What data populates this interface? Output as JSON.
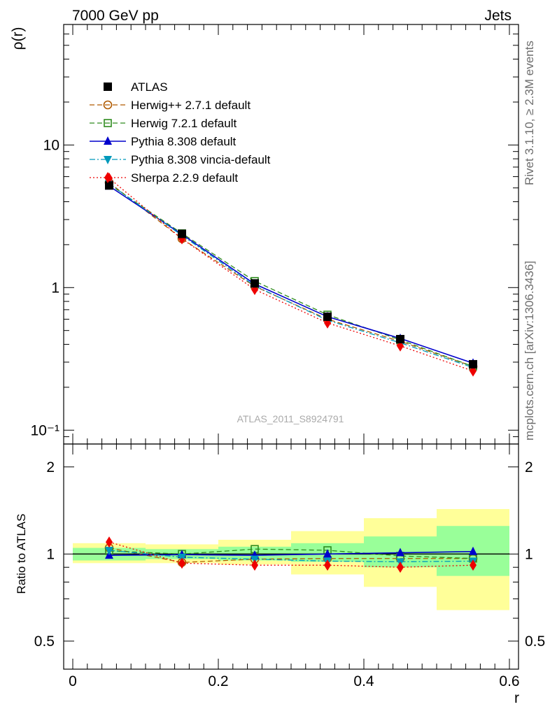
{
  "header": {
    "left": "7000 GeV pp",
    "right": "Jets"
  },
  "side_labels": {
    "rivet": "Rivet 3.1.10, ≥ 2.3M events",
    "mcplots": "mcplots.cern.ch [arXiv:1306.3436]"
  },
  "watermark": "ATLAS_2011_S8924791",
  "chart_data": [
    {
      "panel": "main",
      "type": "line",
      "ylabel": "ρ(r)",
      "yscale": "log",
      "ylim": [
        0.08,
        70
      ],
      "xlim": [
        -0.0125,
        0.6125
      ],
      "yticks": [
        {
          "v": 10,
          "label": "10"
        },
        {
          "v": 1,
          "label": "1"
        },
        {
          "v": 0.1,
          "label": "10⁻¹"
        }
      ],
      "x": [
        0.05,
        0.15,
        0.25,
        0.35,
        0.45,
        0.55
      ],
      "series": [
        {
          "name": "ATLAS",
          "color": "#000000",
          "marker": "square-filled",
          "line": "none",
          "values": [
            5.2,
            2.38,
            1.07,
            0.625,
            0.435,
            0.29
          ]
        },
        {
          "name": "Herwig++ 2.7.1 default",
          "color": "#b05a00",
          "marker": "circle-open",
          "line": "dashed",
          "values": [
            5.45,
            2.2,
            1.02,
            0.6,
            0.42,
            0.28
          ]
        },
        {
          "name": "Herwig 7.2.1 default",
          "color": "#2e8b1e",
          "marker": "square-open",
          "line": "dashed",
          "values": [
            5.3,
            2.4,
            1.11,
            0.645,
            0.43,
            0.28
          ]
        },
        {
          "name": "Pythia 8.308 default",
          "color": "#0000cc",
          "marker": "triangle-up",
          "line": "solid",
          "values": [
            5.15,
            2.36,
            1.06,
            0.625,
            0.44,
            0.295
          ]
        },
        {
          "name": "Pythia 8.308 vincia-default",
          "color": "#0099bb",
          "marker": "triangle-down",
          "line": "dashdot",
          "values": [
            5.35,
            2.32,
            1.03,
            0.59,
            0.41,
            0.275
          ]
        },
        {
          "name": "Sherpa 2.2.9 default",
          "color": "#ee0000",
          "marker": "diamond",
          "line": "dotted",
          "values": [
            5.85,
            2.2,
            0.97,
            0.565,
            0.39,
            0.26
          ]
        }
      ],
      "legend": "top-left"
    },
    {
      "panel": "ratio",
      "type": "line",
      "xlabel": "r",
      "ylabel": "Ratio to ATLAS",
      "yscale": "log",
      "ylim": [
        0.4,
        2.4
      ],
      "xlim": [
        -0.0125,
        0.6125
      ],
      "xticks": [
        {
          "v": 0,
          "label": "0"
        },
        {
          "v": 0.2,
          "label": "0.2"
        },
        {
          "v": 0.4,
          "label": "0.4"
        },
        {
          "v": 0.6,
          "label": "0.6"
        }
      ],
      "yticks": [
        {
          "v": 2,
          "label": "2"
        },
        {
          "v": 1,
          "label": "1"
        },
        {
          "v": 0.5,
          "label": "0.5"
        }
      ],
      "x": [
        0.05,
        0.15,
        0.25,
        0.35,
        0.45,
        0.55
      ],
      "bins": [
        [
          0.0,
          0.1
        ],
        [
          0.1,
          0.2
        ],
        [
          0.2,
          0.3
        ],
        [
          0.3,
          0.4
        ],
        [
          0.4,
          0.5
        ],
        [
          0.5,
          0.6
        ]
      ],
      "band_stat": [
        [
          0.95,
          1.05
        ],
        [
          0.96,
          1.04
        ],
        [
          0.95,
          1.06
        ],
        [
          0.94,
          1.09
        ],
        [
          0.9,
          1.15
        ],
        [
          0.84,
          1.25
        ]
      ],
      "band_total": [
        [
          0.93,
          1.09
        ],
        [
          0.93,
          1.08
        ],
        [
          0.92,
          1.12
        ],
        [
          0.85,
          1.2
        ],
        [
          0.77,
          1.33
        ],
        [
          0.64,
          1.43
        ]
      ],
      "series": [
        {
          "name": "Herwig++ 2.7.1 default",
          "color": "#b05a00",
          "marker": "circle-open",
          "line": "dashed",
          "values": [
            1.05,
            0.935,
            0.96,
            0.965,
            0.965,
            0.965
          ]
        },
        {
          "name": "Herwig 7.2.1 default",
          "color": "#2e8b1e",
          "marker": "square-open",
          "line": "dashed",
          "values": [
            1.025,
            1.0,
            1.04,
            1.03,
            0.985,
            0.965
          ]
        },
        {
          "name": "Pythia 8.308 default",
          "color": "#0000cc",
          "marker": "triangle-up",
          "line": "solid",
          "values": [
            0.99,
            0.995,
            0.99,
            1.0,
            1.01,
            1.02
          ]
        },
        {
          "name": "Pythia 8.308 vincia-default",
          "color": "#0099bb",
          "marker": "triangle-down",
          "line": "dashdot",
          "values": [
            1.03,
            0.975,
            0.96,
            0.945,
            0.94,
            0.945
          ]
        },
        {
          "name": "Sherpa 2.2.9 default",
          "color": "#ee0000",
          "marker": "diamond",
          "line": "dotted",
          "values": [
            1.1,
            0.93,
            0.915,
            0.915,
            0.9,
            0.915
          ]
        }
      ]
    }
  ],
  "colors": {
    "band_stat": "#99ff99",
    "band_total": "#ffff99"
  }
}
